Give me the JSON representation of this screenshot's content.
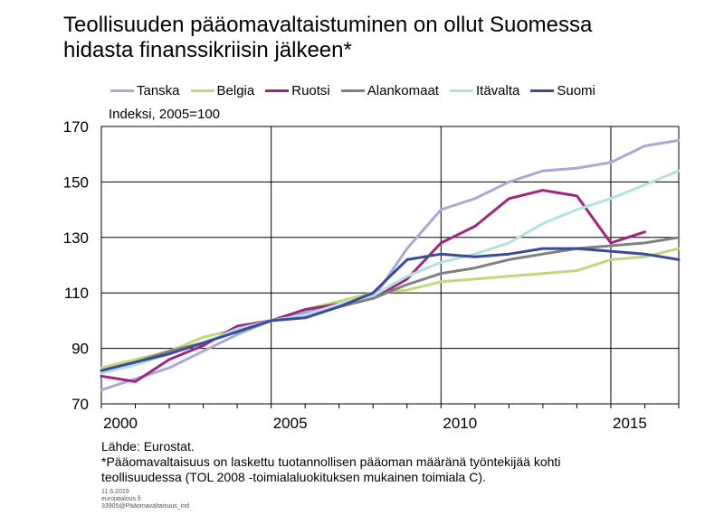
{
  "title_line1": "Teollisuuden pääomavaltaistuminen on ollut Suomessa",
  "title_line2": "hidasta finanssikriisin jälkeen*",
  "footer": {
    "source": "Lähde: Eurostat.",
    "note_line1": "*Pääomavaltaisuus on laskettu tuotannollisen pääoman määränä työntekijää kohti",
    "note_line2": "teollisuudessa (TOL 2008 -toimialaluokituksen mukainen toimiala C).",
    "date": "11.6.2019",
    "site": "eurojatalous.fi",
    "code": "33905@Pääomavaltaisuus_ind"
  },
  "chart_data": {
    "type": "line",
    "ylabel": "Indeksi, 2005=100",
    "ylim": [
      70,
      170
    ],
    "yticks": [
      70,
      90,
      110,
      130,
      150,
      170
    ],
    "xlim": [
      2000,
      2017
    ],
    "xticks": [
      2000,
      2005,
      2010,
      2015
    ],
    "x_gridlines": [
      2000,
      2005,
      2010,
      2015
    ],
    "legend_position": "top",
    "x": [
      2000,
      2001,
      2002,
      2003,
      2004,
      2005,
      2006,
      2007,
      2008,
      2009,
      2010,
      2011,
      2012,
      2013,
      2014,
      2015,
      2016,
      2017
    ],
    "series": [
      {
        "name": "Tanska",
        "color": "#a9a9d6",
        "values": [
          75,
          79,
          83,
          89,
          95,
          100,
          103,
          106,
          108,
          126,
          140,
          144,
          150,
          154,
          155,
          157,
          163,
          165
        ]
      },
      {
        "name": "Belgia",
        "color": "#c3d87c",
        "values": [
          83,
          86,
          89,
          94,
          97,
          100,
          104,
          107,
          110,
          111,
          114,
          115,
          116,
          117,
          118,
          122,
          123,
          126
        ]
      },
      {
        "name": "Ruotsi",
        "color": "#a0257e",
        "values": [
          80,
          78,
          86,
          91,
          98,
          100,
          104,
          106,
          108,
          115,
          128,
          134,
          144,
          147,
          145,
          128,
          132,
          null
        ]
      },
      {
        "name": "Alankomaat",
        "color": "#808080",
        "values": [
          82,
          85,
          89,
          92,
          96,
          100,
          102,
          105,
          108,
          113,
          117,
          119,
          122,
          124,
          126,
          127,
          128,
          130
        ]
      },
      {
        "name": "Itävalta",
        "color": "#b3e1e0",
        "values": [
          81,
          84,
          88,
          92,
          97,
          100,
          102,
          106,
          109,
          116,
          121,
          124,
          128,
          135,
          140,
          144,
          149,
          154
        ]
      },
      {
        "name": "Suomi",
        "color": "#3b4a9c",
        "values": [
          82,
          85,
          88,
          92,
          96,
          100,
          101,
          105,
          110,
          122,
          124,
          123,
          124,
          126,
          126,
          125,
          124,
          122
        ]
      }
    ]
  }
}
